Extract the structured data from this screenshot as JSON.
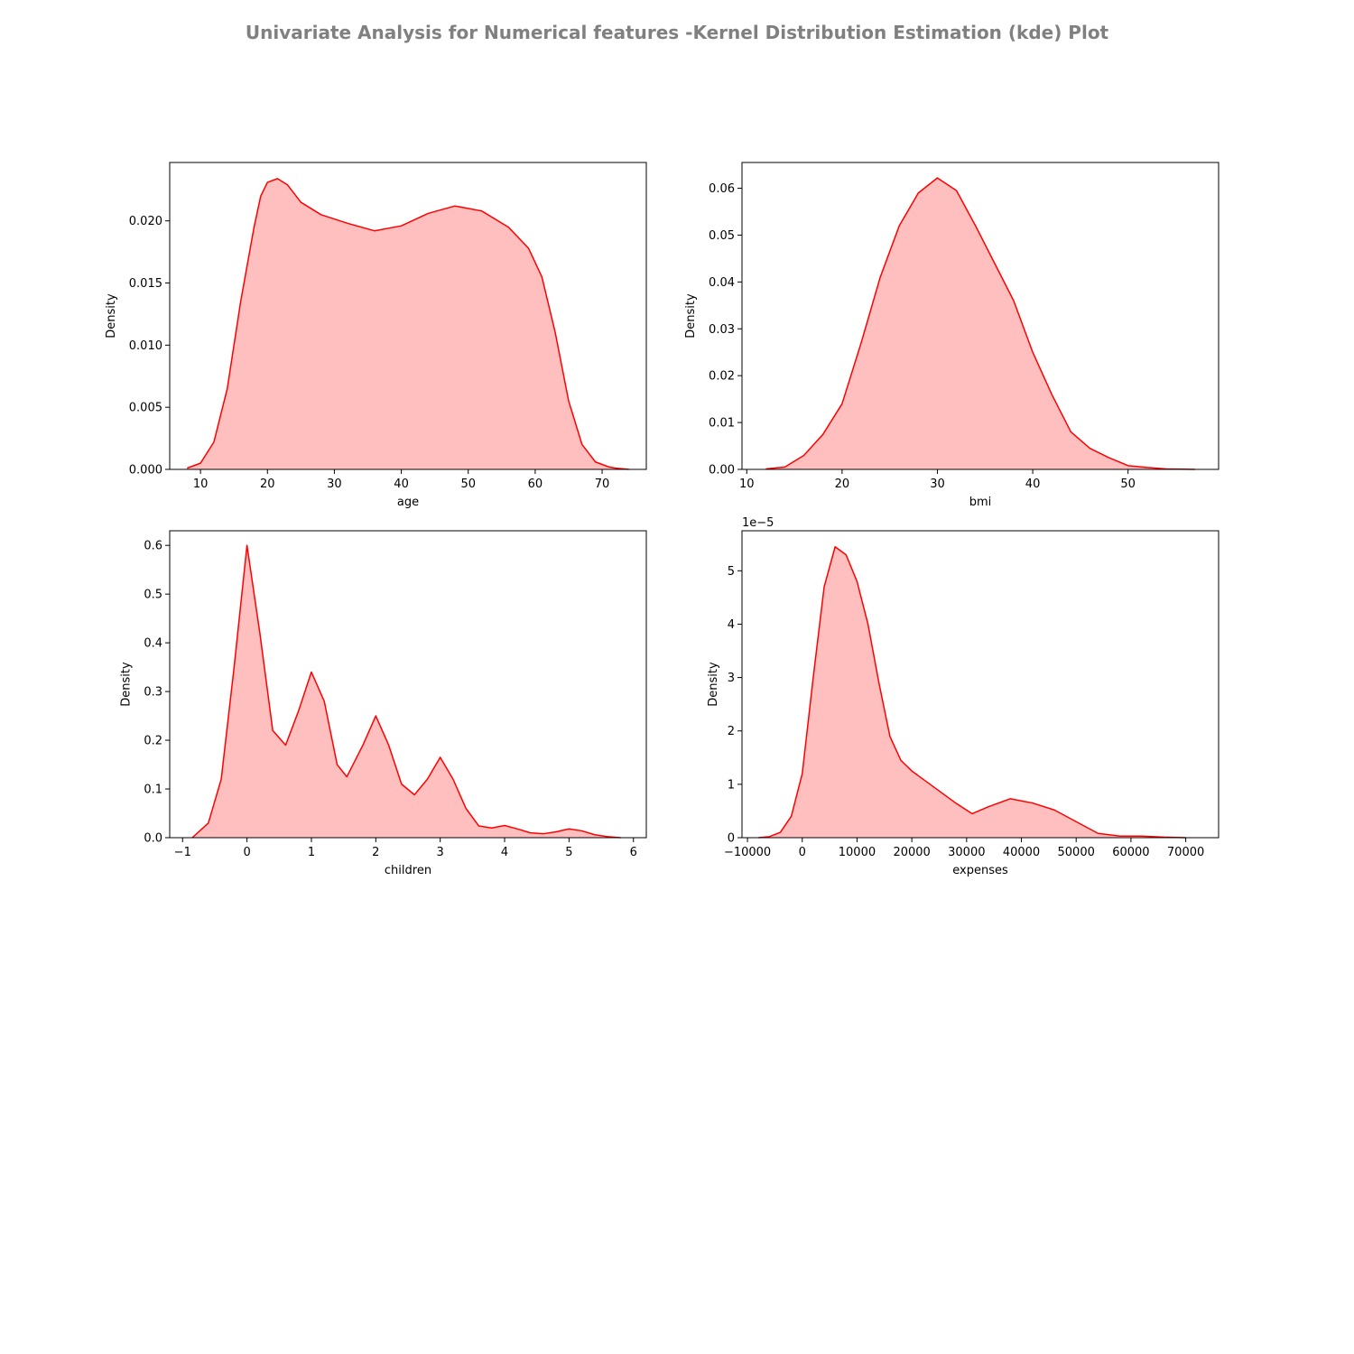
{
  "figure": {
    "suptitle": "Univariate Analysis for Numerical features -Kernel Distribution Estimation (kde) Plot",
    "line_color": "#ff0000",
    "fill_color": "#ffbfbf"
  },
  "chart_data": [
    {
      "type": "area",
      "xlabel": "age",
      "ylabel": "Density",
      "xlim": [
        5.4,
        76.6
      ],
      "ylim": [
        0,
        0.0247
      ],
      "xticks": [
        10,
        20,
        30,
        40,
        50,
        60,
        70
      ],
      "xtick_labels": [
        "10",
        "20",
        "30",
        "40",
        "50",
        "60",
        "70"
      ],
      "yticks": [
        0,
        0.005,
        0.01,
        0.015,
        0.02
      ],
      "ytick_labels": [
        "0.000",
        "0.005",
        "0.010",
        "0.015",
        "0.020"
      ],
      "offset_label": "",
      "x": [
        8,
        10,
        12,
        14,
        16,
        18,
        19,
        20,
        21.5,
        23,
        25,
        28,
        32,
        36,
        40,
        44,
        48,
        52,
        56,
        59,
        61,
        63,
        65,
        67,
        69,
        71,
        72,
        74
      ],
      "y": [
        0.0001,
        0.0005,
        0.0022,
        0.0065,
        0.0135,
        0.0195,
        0.022,
        0.0231,
        0.0234,
        0.0229,
        0.0215,
        0.0205,
        0.0198,
        0.0192,
        0.0196,
        0.0206,
        0.0212,
        0.0208,
        0.0195,
        0.0178,
        0.0155,
        0.011,
        0.0055,
        0.002,
        0.0006,
        0.0002,
        0.0001,
        0.0
      ]
    },
    {
      "type": "area",
      "xlabel": "bmi",
      "ylabel": "Density",
      "xlim": [
        9.5,
        59.5
      ],
      "ylim": [
        0,
        0.0655
      ],
      "xticks": [
        10,
        20,
        30,
        40,
        50
      ],
      "xtick_labels": [
        "10",
        "20",
        "30",
        "40",
        "50"
      ],
      "yticks": [
        0,
        0.01,
        0.02,
        0.03,
        0.04,
        0.05,
        0.06
      ],
      "ytick_labels": [
        "0.00",
        "0.01",
        "0.02",
        "0.03",
        "0.04",
        "0.05",
        "0.06"
      ],
      "offset_label": "",
      "x": [
        12,
        14,
        16,
        18,
        20,
        22,
        24,
        26,
        28,
        30,
        32,
        34,
        36,
        38,
        40,
        42,
        44,
        46,
        48,
        50,
        52,
        54,
        57
      ],
      "y": [
        0.0001,
        0.0005,
        0.003,
        0.0075,
        0.014,
        0.027,
        0.041,
        0.052,
        0.059,
        0.0622,
        0.0595,
        0.052,
        0.044,
        0.036,
        0.025,
        0.016,
        0.008,
        0.0045,
        0.0025,
        0.0008,
        0.0004,
        0.0001,
        0.0
      ]
    },
    {
      "type": "area",
      "xlabel": "children",
      "ylabel": "Density",
      "xlim": [
        -1.2,
        6.2
      ],
      "ylim": [
        0,
        0.63
      ],
      "xticks": [
        -1,
        0,
        1,
        2,
        3,
        4,
        5,
        6
      ],
      "xtick_labels": [
        "−1",
        "0",
        "1",
        "2",
        "3",
        "4",
        "5",
        "6"
      ],
      "yticks": [
        0,
        0.1,
        0.2,
        0.3,
        0.4,
        0.5,
        0.6
      ],
      "ytick_labels": [
        "0.0",
        "0.1",
        "0.2",
        "0.3",
        "0.4",
        "0.5",
        "0.6"
      ],
      "offset_label": "",
      "x": [
        -0.85,
        -0.6,
        -0.4,
        -0.2,
        0,
        0.2,
        0.4,
        0.6,
        0.8,
        1.0,
        1.2,
        1.4,
        1.55,
        1.8,
        2.0,
        2.2,
        2.4,
        2.6,
        2.8,
        3.0,
        3.2,
        3.4,
        3.6,
        3.8,
        4.0,
        4.2,
        4.4,
        4.6,
        4.8,
        5.0,
        5.2,
        5.4,
        5.6,
        5.8
      ],
      "y": [
        0.0,
        0.03,
        0.12,
        0.35,
        0.6,
        0.42,
        0.22,
        0.19,
        0.26,
        0.34,
        0.28,
        0.15,
        0.125,
        0.19,
        0.25,
        0.19,
        0.11,
        0.088,
        0.12,
        0.165,
        0.12,
        0.06,
        0.024,
        0.02,
        0.025,
        0.018,
        0.01,
        0.008,
        0.012,
        0.018,
        0.014,
        0.006,
        0.002,
        0.0
      ]
    },
    {
      "type": "area",
      "xlabel": "expenses",
      "ylabel": "Density",
      "xlim": [
        -11000,
        76000
      ],
      "ylim": [
        0,
        5.75e-05
      ],
      "xticks": [
        -10000,
        0,
        10000,
        20000,
        30000,
        40000,
        50000,
        60000,
        70000
      ],
      "xtick_labels": [
        "−10000",
        "0",
        "10000",
        "20000",
        "30000",
        "40000",
        "50000",
        "60000",
        "70000"
      ],
      "yticks": [
        0,
        1e-05,
        2e-05,
        3e-05,
        4e-05,
        5e-05
      ],
      "ytick_labels": [
        "0",
        "1",
        "2",
        "3",
        "4",
        "5"
      ],
      "offset_label": "1e−5",
      "x": [
        -8000,
        -6000,
        -4000,
        -2000,
        0,
        2000,
        4000,
        6000,
        8000,
        10000,
        12000,
        14000,
        16000,
        18000,
        20000,
        24000,
        28000,
        31000,
        34000,
        38000,
        42000,
        46000,
        50000,
        54000,
        58000,
        62000,
        66000,
        70000
      ],
      "y": [
        0.0,
        2e-07,
        1e-06,
        4e-06,
        1.2e-05,
        3e-05,
        4.7e-05,
        5.45e-05,
        5.3e-05,
        4.8e-05,
        4e-05,
        2.9e-05,
        1.9e-05,
        1.45e-05,
        1.25e-05,
        9.5e-06,
        6.5e-06,
        4.5e-06,
        5.8e-06,
        7.3e-06,
        6.5e-06,
        5.2e-06,
        3e-06,
        8e-07,
        3e-07,
        3e-07,
        1e-07,
        0.0
      ]
    }
  ]
}
